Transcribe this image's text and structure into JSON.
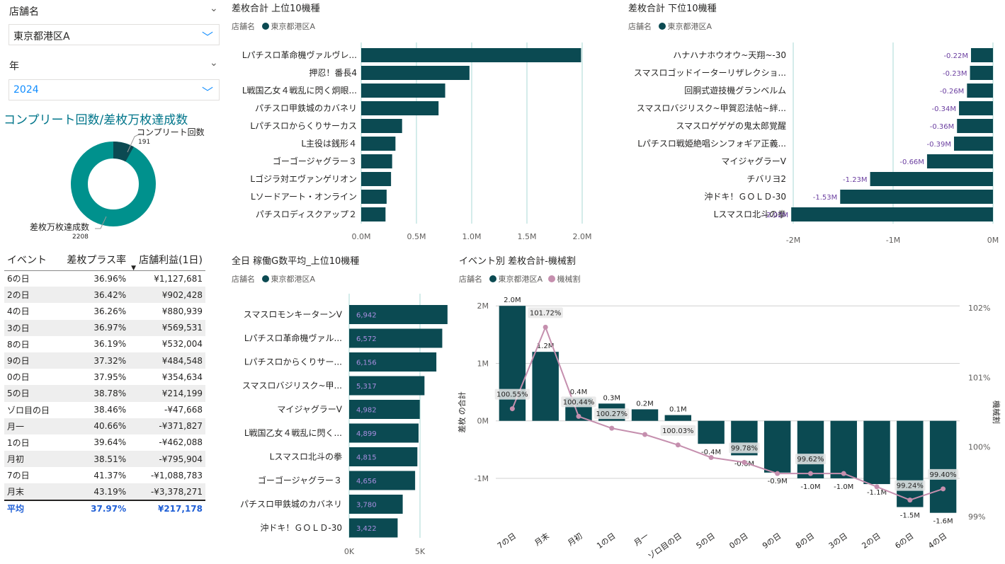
{
  "slicers": {
    "store": {
      "label": "店舗名",
      "value": "東京都港区A"
    },
    "year": {
      "label": "年",
      "value": "2024"
    }
  },
  "donut": {
    "title": "コンプリート回数/差枚万枚達成数",
    "segments": [
      {
        "label": "コンプリート回数",
        "value": 191,
        "value_text": "191",
        "color": "#0B4A52"
      },
      {
        "label": "差枚万枚達成数",
        "value": 2208,
        "value_text": "2208",
        "color": "#00918D"
      }
    ]
  },
  "event_table": {
    "headers": [
      "イベント",
      "差枚プラス率",
      "店舗利益(1日)"
    ],
    "rows": [
      [
        "6の日",
        "36.96%",
        "¥1,127,681"
      ],
      [
        "2の日",
        "36.42%",
        "¥902,428"
      ],
      [
        "4の日",
        "36.26%",
        "¥880,939"
      ],
      [
        "3の日",
        "36.97%",
        "¥569,531"
      ],
      [
        "8の日",
        "36.19%",
        "¥532,004"
      ],
      [
        "9の日",
        "37.32%",
        "¥484,548"
      ],
      [
        "0の日",
        "37.95%",
        "¥354,634"
      ],
      [
        "5の日",
        "38.78%",
        "¥214,199"
      ],
      [
        "ゾロ目の日",
        "38.46%",
        "-¥47,668"
      ],
      [
        "月一",
        "40.66%",
        "-¥371,827"
      ],
      [
        "1の日",
        "39.64%",
        "-¥462,088"
      ],
      [
        "月初",
        "38.51%",
        "-¥795,904"
      ],
      [
        "7の日",
        "41.37%",
        "-¥1,088,783"
      ],
      [
        "月末",
        "43.19%",
        "-¥3,378,271"
      ]
    ],
    "total": [
      "平均",
      "37.97%",
      "¥217,178"
    ]
  },
  "legend_store": {
    "label": "店舗名",
    "item": "東京都港区A"
  },
  "colors": {
    "bar": "#0B4A52",
    "line": "#C58FAE",
    "grid": "#a8dad6",
    "total_text": "#1F5FD6",
    "data_label_purple": "#6B3FA0"
  },
  "chart_data": [
    {
      "id": "top10",
      "type": "bar",
      "orientation": "horizontal",
      "title": "差枚合計 上位10機種",
      "categories": [
        "Lパチスロ革命機ヴァルヴレ...",
        "押忍！番長4",
        "L戦国乙女４戦乱に閃く炯眼...",
        "パチスロ甲鉄城のカバネリ",
        "Lパチスロからくりサーカス",
        "L主役は銭形４",
        "ゴーゴージャグラー３",
        "Lゴジラ対エヴァンゲリオン",
        "Lソードアート・オンライン",
        "パチスロディスクアップ２"
      ],
      "values": [
        1.99,
        0.98,
        0.76,
        0.7,
        0.37,
        0.31,
        0.28,
        0.27,
        0.23,
        0.22
      ],
      "unit": "M",
      "xlim": [
        0,
        2.0
      ],
      "xticks": [
        "0.0M",
        "0.5M",
        "1.0M",
        "1.5M",
        "2.0M"
      ],
      "grid": true
    },
    {
      "id": "bottom10",
      "type": "bar",
      "orientation": "horizontal",
      "title": "差枚合計 下位10機種",
      "categories": [
        "ハナハナホウオウ~天翔~-30",
        "スマスロゴッドイーターリザレクショ...",
        "回胴式遊技機グランベルム",
        "スマスロバジリスク~甲賀忍法帖~絆...",
        "スマスロゲゲゲの鬼太郎覚醒",
        "Lパチスロ戦姫絶唱シンフォギア正義...",
        "マイジャグラーV",
        "チバリヨ2",
        "沖ドキ！ＧＯＬＤ-30",
        "Lスマスロ北斗の拳"
      ],
      "values": [
        -0.22,
        -0.23,
        -0.26,
        -0.34,
        -0.36,
        -0.39,
        -0.66,
        -1.23,
        -1.53,
        -2.02
      ],
      "labels": [
        "-0.22M",
        "-0.23M",
        "-0.26M",
        "-0.34M",
        "-0.36M",
        "-0.39M",
        "-0.66M",
        "-1.23M",
        "-1.53M",
        "-2.02M"
      ],
      "unit": "M",
      "xlim": [
        -2,
        0
      ],
      "xticks": [
        "-2M",
        "-1M",
        "0M"
      ],
      "grid": true
    },
    {
      "id": "operation",
      "type": "bar",
      "orientation": "horizontal",
      "title": "全日 稼働G数平均_上位10機種",
      "categories": [
        "スマスロモンキーターンV",
        "Lパチスロ革命機ヴァル...",
        "Lパチスロからくりサー...",
        "スマスロバジリスク~甲...",
        "マイジャグラーV",
        "L戦国乙女４戦乱に閃く...",
        "Lスマスロ北斗の拳",
        "ゴーゴージャグラー３",
        "パチスロ甲鉄城のカバネリ",
        "沖ドキ！ＧＯＬＤ-30"
      ],
      "values": [
        6942,
        6572,
        6156,
        5317,
        4982,
        4899,
        4815,
        4656,
        3780,
        3422
      ],
      "labels": [
        "6,942",
        "6,572",
        "6,156",
        "5,317",
        "4,982",
        "4,899",
        "4,815",
        "4,656",
        "3,780",
        "3,422"
      ],
      "xlim": [
        0,
        7000
      ],
      "xticks": [
        "0K",
        "5K"
      ],
      "grid": true
    },
    {
      "id": "event_combo",
      "type": "bar",
      "title": "イベント別 差枚合計-機械割",
      "categories": [
        "7の日",
        "月末",
        "月初",
        "1の日",
        "月一",
        "ゾロ目の日",
        "5の日",
        "0の日",
        "9の日",
        "8の日",
        "3の日",
        "2の日",
        "6の日",
        "4の日"
      ],
      "series": [
        {
          "name": "東京都港区A",
          "kind": "bar",
          "values": [
            2.0,
            1.2,
            0.4,
            0.3,
            0.2,
            0.1,
            -0.4,
            -0.6,
            -0.9,
            -1.0,
            -1.0,
            -1.1,
            -1.5,
            -1.6
          ],
          "labels": [
            "2.0M",
            "1.2M",
            "0.4M",
            "0.3M",
            "0.2M",
            "0.1M",
            "-0.4M",
            "-0.6M",
            "-0.9M",
            "-1.0M",
            "-1.0M",
            "-1.1M",
            "-1.5M",
            "-1.6M"
          ]
        },
        {
          "name": "機械割",
          "kind": "line",
          "values": [
            100.55,
            101.72,
            100.44,
            100.27,
            100.18,
            100.03,
            99.85,
            99.78,
            99.62,
            99.62,
            99.62,
            99.43,
            99.24,
            99.4
          ],
          "labels": [
            "100.55%",
            "101.72%",
            "100.44%",
            "100.27%",
            "",
            "100.03%",
            "",
            "99.78%",
            "",
            "99.62%",
            "",
            "",
            "99.24%",
            "99.40%"
          ]
        }
      ],
      "ylabel": "差枚 の合計",
      "y2label": "機械割",
      "ylim": [
        -1.85,
        2.15
      ],
      "y2lim": [
        98.85,
        102.15
      ],
      "yticks": [
        "2M",
        "1M",
        "0M",
        "-1M"
      ],
      "y2ticks": [
        "102%",
        "101%",
        "100%",
        "99%"
      ]
    }
  ]
}
